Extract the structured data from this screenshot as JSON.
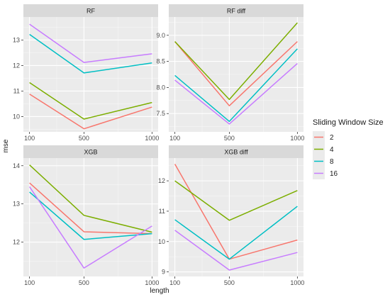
{
  "chart_data": {
    "type": "line",
    "xlabel": "length",
    "ylabel": "mse",
    "x": [
      100,
      500,
      1000
    ],
    "x_tick_labels": [
      "100",
      "500",
      "1000"
    ],
    "legend": {
      "title": "Sliding Window Size",
      "placement": "right",
      "entries": [
        "2",
        "4",
        "8",
        "16"
      ]
    },
    "series_colors": {
      "2": "#F8766D",
      "4": "#7CAE00",
      "8": "#00BFC4",
      "16": "#C77CFF"
    },
    "grid": true,
    "facets": [
      {
        "title": "RF",
        "ylim": [
          9.4,
          13.9
        ],
        "yticks": [
          10,
          11,
          12,
          13
        ],
        "series": [
          {
            "name": "2",
            "values": [
              10.88,
              9.52,
              10.37
            ]
          },
          {
            "name": "4",
            "values": [
              11.33,
              9.9,
              10.55
            ]
          },
          {
            "name": "8",
            "values": [
              13.22,
              11.71,
              12.1
            ]
          },
          {
            "name": "16",
            "values": [
              13.62,
              12.12,
              12.46
            ]
          }
        ]
      },
      {
        "title": "RF diff",
        "ylim": [
          7.15,
          9.35
        ],
        "yticks": [
          7.5,
          8.0,
          8.5,
          9.0
        ],
        "series": [
          {
            "name": "2",
            "values": [
              8.88,
              7.65,
              8.88
            ]
          },
          {
            "name": "4",
            "values": [
              8.88,
              7.77,
              9.24
            ]
          },
          {
            "name": "8",
            "values": [
              8.23,
              7.35,
              8.74
            ]
          },
          {
            "name": "16",
            "values": [
              8.14,
              7.3,
              8.46
            ]
          }
        ]
      },
      {
        "title": "XGB",
        "ylim": [
          11.1,
          14.2
        ],
        "yticks": [
          12,
          13,
          14
        ],
        "series": [
          {
            "name": "2",
            "values": [
              13.55,
              12.27,
              12.22
            ]
          },
          {
            "name": "4",
            "values": [
              14.02,
              12.7,
              12.26
            ]
          },
          {
            "name": "8",
            "values": [
              13.31,
              12.07,
              12.22
            ]
          },
          {
            "name": "16",
            "values": [
              13.45,
              11.32,
              12.42
            ]
          }
        ]
      },
      {
        "title": "XGB diff",
        "ylim": [
          8.85,
          12.75
        ],
        "yticks": [
          9,
          10,
          11,
          12
        ],
        "series": [
          {
            "name": "2",
            "values": [
              12.55,
              9.42,
              10.05
            ]
          },
          {
            "name": "4",
            "values": [
              12.0,
              10.7,
              11.68
            ]
          },
          {
            "name": "8",
            "values": [
              10.72,
              9.42,
              11.16
            ]
          },
          {
            "name": "16",
            "values": [
              10.37,
              9.06,
              9.64
            ]
          }
        ]
      }
    ]
  }
}
